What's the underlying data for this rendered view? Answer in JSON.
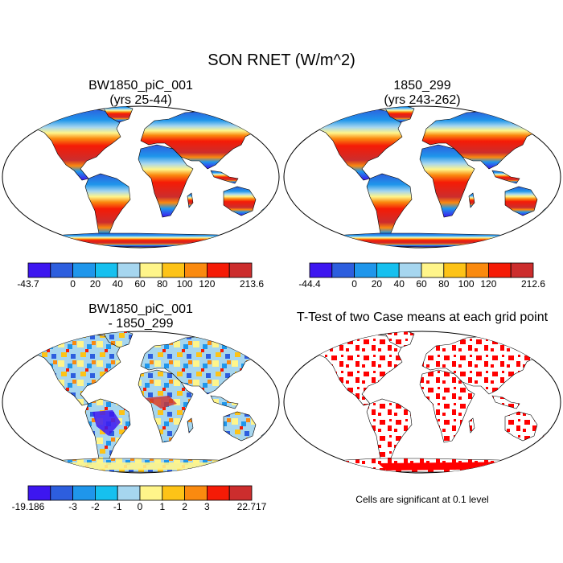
{
  "title": "SON RNET (W/m^2)",
  "panels": [
    {
      "id": "p1",
      "title_line1": "BW1850_piC_001",
      "title_line2": "(yrs 25-44)"
    },
    {
      "id": "p2",
      "title_line1": "1850_299",
      "title_line2": "(yrs 243-262)"
    },
    {
      "id": "p3",
      "title_line1": "BW1850_piC_001",
      "title_line2": "- 1850_299"
    },
    {
      "id": "p4",
      "title_line1": "T-Test of two Case means at each grid point",
      "title_line2": ""
    }
  ],
  "colorbars": [
    {
      "id": "cb1",
      "colors": [
        "#3d16f0",
        "#2d5ede",
        "#1f96eb",
        "#16c0ef",
        "#a6d6ef",
        "#fff58a",
        "#fdc317",
        "#fa8a0f",
        "#f51b06",
        "#cc2d2d"
      ],
      "labels": [
        "-43.7",
        "0",
        "20",
        "40",
        "60",
        "80",
        "100",
        "120",
        "213.6"
      ]
    },
    {
      "id": "cb2",
      "colors": [
        "#3d16f0",
        "#2d5ede",
        "#1f96eb",
        "#16c0ef",
        "#a6d6ef",
        "#fff58a",
        "#fdc317",
        "#fa8a0f",
        "#f51b06",
        "#cc2d2d"
      ],
      "labels": [
        "-44.4",
        "0",
        "20",
        "40",
        "60",
        "80",
        "100",
        "120",
        "212.6"
      ]
    },
    {
      "id": "cb3",
      "colors": [
        "#3d16f0",
        "#2d5ede",
        "#1f96eb",
        "#16c0ef",
        "#a6d6ef",
        "#fff58a",
        "#fdc317",
        "#fa8a0f",
        "#f51b06",
        "#cc2d2d"
      ],
      "labels": [
        "-19.186",
        "-3",
        "-2",
        "-1",
        "0",
        "1",
        "2",
        "3",
        "22.717"
      ]
    }
  ],
  "significance_note": "Cells are significant at 0.1 level",
  "significance_color": "#ff0000"
}
